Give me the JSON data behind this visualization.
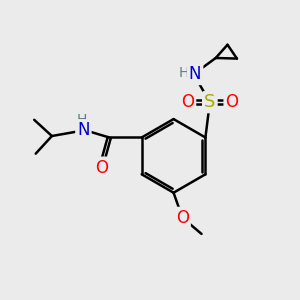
{
  "bg_color": "#ebebeb",
  "atom_colors": {
    "C": "#000000",
    "N": "#0000cc",
    "O": "#ff0000",
    "S": "#aaaa00",
    "H": "#5a8080"
  },
  "bond_color": "#000000",
  "bond_width": 1.8,
  "figsize": [
    3.0,
    3.0
  ],
  "dpi": 100
}
